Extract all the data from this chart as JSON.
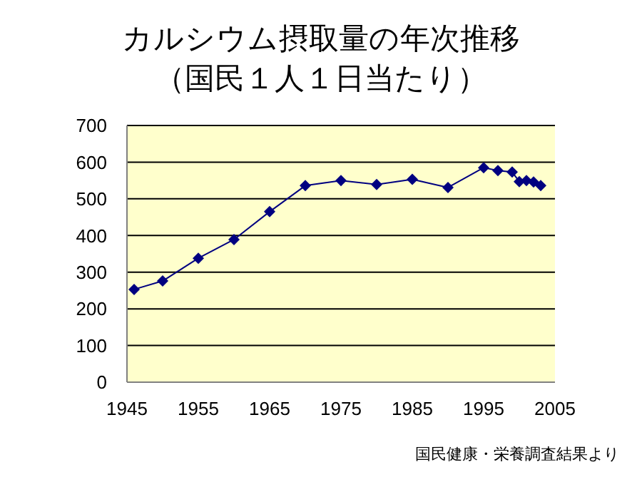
{
  "chart_data": {
    "type": "line",
    "title": "カルシウム摂取量の年次推移",
    "subtitle": "（国民１人１日当たり）",
    "annotations": [
      "国民健康・栄養調査結果より"
    ],
    "x": [
      1946,
      1950,
      1955,
      1960,
      1965,
      1970,
      1975,
      1980,
      1985,
      1990,
      1995,
      1997,
      1999,
      2000,
      2001,
      2002,
      2003
    ],
    "series": [
      {
        "color": "#000080",
        "values": [
          253,
          276,
          338,
          389,
          465,
          536,
          550,
          539,
          553,
          531,
          585,
          577,
          573,
          547,
          550,
          546,
          536
        ]
      }
    ],
    "xlim": [
      1945,
      2005
    ],
    "xticks": [
      1945,
      1955,
      1965,
      1975,
      1985,
      1995,
      2005
    ],
    "ylim": [
      0,
      700
    ],
    "yticks": [
      0,
      100,
      200,
      300,
      400,
      500,
      600,
      700
    ],
    "grid": "y",
    "legend": false,
    "marker": "diamond",
    "line_style": "solid"
  }
}
